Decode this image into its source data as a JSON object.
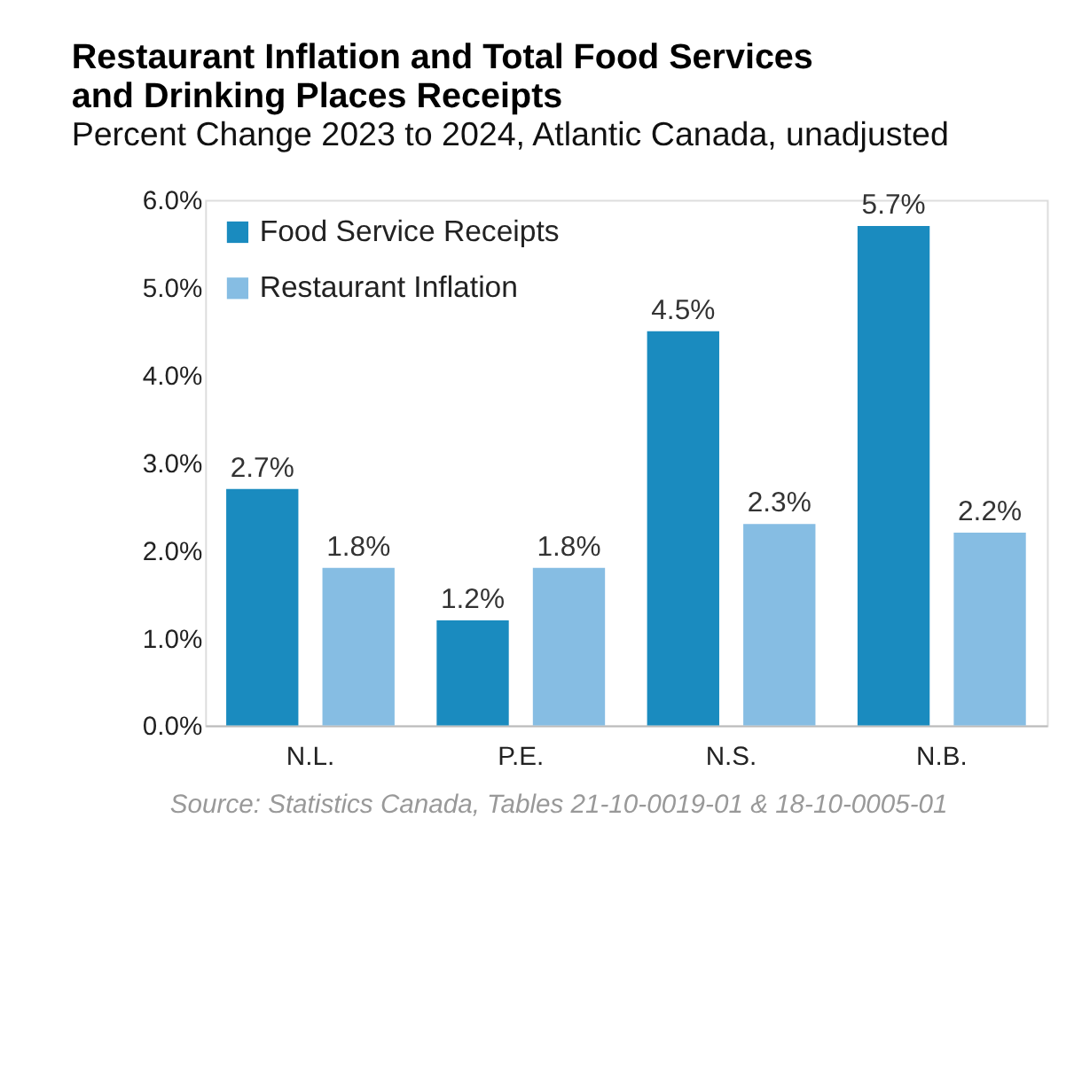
{
  "chart_data": {
    "type": "bar",
    "title": "Restaurant Inflation and Total Food Services and Drinking Places Receipts",
    "subtitle": "Percent Change 2023 to 2024, Atlantic Canada, unadjusted",
    "categories": [
      "N.L.",
      "P.E.",
      "N.S.",
      "N.B."
    ],
    "series": [
      {
        "name": "Food Service Receipts",
        "color": "#1a8bbf",
        "values": [
          2.7,
          1.2,
          4.5,
          5.7
        ],
        "value_labels": [
          "2.7%",
          "1.2%",
          "4.5%",
          "5.7%"
        ]
      },
      {
        "name": "Restaurant Inflation",
        "color": "#86bde3",
        "values": [
          1.8,
          1.8,
          2.3,
          2.2
        ],
        "value_labels": [
          "1.8%",
          "1.8%",
          "2.3%",
          "2.2%"
        ]
      }
    ],
    "ylim": [
      0,
      6
    ],
    "yticks": [
      {
        "value": 0,
        "label": "0.0%"
      },
      {
        "value": 1,
        "label": "1.0%"
      },
      {
        "value": 2,
        "label": "2.0%"
      },
      {
        "value": 3,
        "label": "3.0%"
      },
      {
        "value": 4,
        "label": "4.0%"
      },
      {
        "value": 5,
        "label": "5.0%"
      },
      {
        "value": 6,
        "label": "6.0%"
      }
    ],
    "grid": false,
    "legend": "top left",
    "annotations": [
      "Source: Statistics Canada, Tables 21-10-0019-01 & 18-10-0005-01"
    ]
  }
}
